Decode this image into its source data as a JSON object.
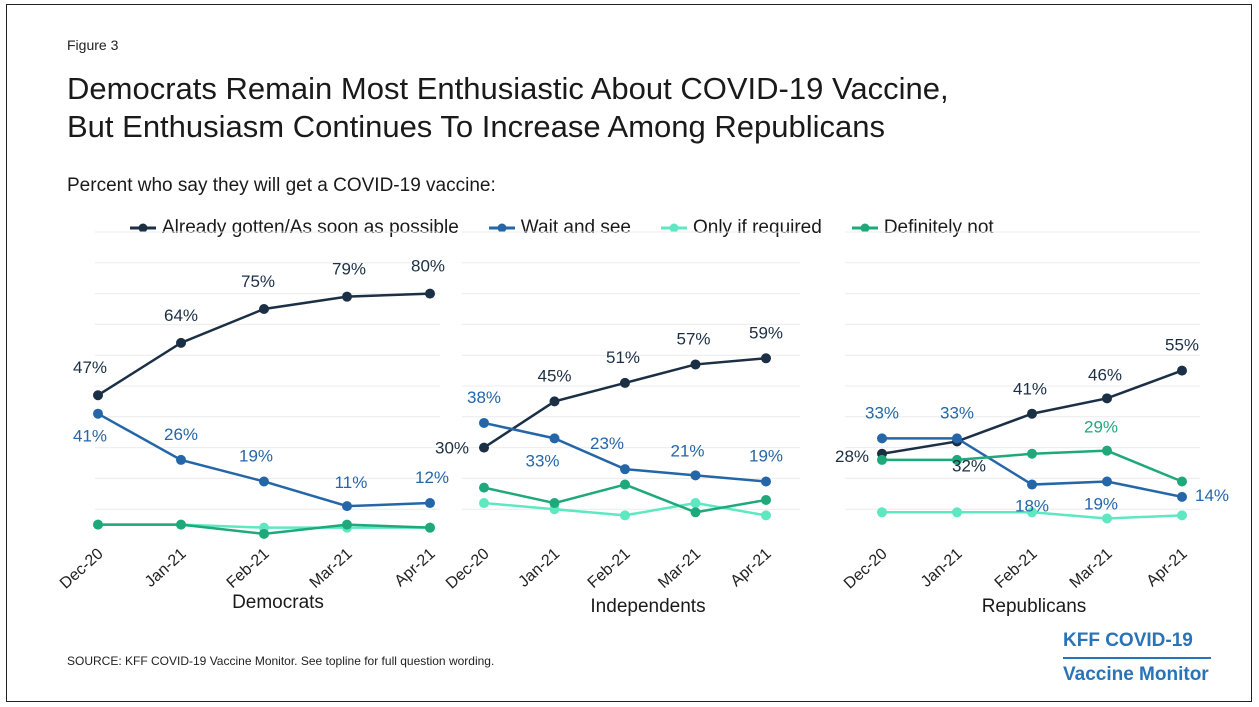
{
  "figure_label": "Figure 3",
  "title_line1": "Democrats Remain Most Enthusiastic About COVID-19 Vaccine,",
  "title_line2": "But Enthusiasm Continues To Increase Among Republicans",
  "subtitle": "Percent who say they will get a COVID-19 vaccine:",
  "source": "SOURCE: KFF COVID-19 Vaccine Monitor. See topline for full question wording.",
  "brand_line1": "KFF COVID-19",
  "brand_line2": "Vaccine Monitor",
  "colors": {
    "already": "#1b2f45",
    "wait": "#2566a8",
    "required": "#5ee8c2",
    "definitely_not": "#1fa97a"
  },
  "legend": [
    {
      "label": "Already gotten/As soon as possible",
      "color": "#1b2f45"
    },
    {
      "label": "Wait and see",
      "color": "#2566a8"
    },
    {
      "label": "Only if required",
      "color": "#5ee8c2"
    },
    {
      "label": "Definitely not",
      "color": "#1fa97a"
    }
  ],
  "chart_data": [
    {
      "type": "line",
      "title": "Democrats",
      "categories": [
        "Dec-20",
        "Jan-21",
        "Feb-21",
        "Mar-21",
        "Apr-21"
      ],
      "series": [
        {
          "name": "Already gotten/As soon as possible",
          "values": [
            47,
            64,
            75,
            79,
            80
          ],
          "labels": [
            "47%",
            "64%",
            "75%",
            "79%",
            "80%"
          ]
        },
        {
          "name": "Wait and see",
          "values": [
            41,
            26,
            19,
            11,
            12
          ],
          "labels": [
            "41%",
            "26%",
            "19%",
            "11%",
            "12%"
          ]
        },
        {
          "name": "Only if required",
          "values": [
            5,
            5,
            4,
            4,
            4
          ],
          "labels": []
        },
        {
          "name": "Definitely not",
          "values": [
            5,
            5,
            2,
            5,
            4
          ],
          "labels": []
        }
      ],
      "ylim": [
        0,
        100
      ]
    },
    {
      "type": "line",
      "title": "Independents",
      "categories": [
        "Dec-20",
        "Jan-21",
        "Feb-21",
        "Mar-21",
        "Apr-21"
      ],
      "series": [
        {
          "name": "Already gotten/As soon as possible",
          "values": [
            30,
            45,
            51,
            57,
            59
          ],
          "labels": [
            "30%",
            "45%",
            "51%",
            "57%",
            "59%"
          ]
        },
        {
          "name": "Wait and see",
          "values": [
            38,
            33,
            23,
            21,
            19
          ],
          "labels": [
            "38%",
            "33%",
            "23%",
            "21%",
            "19%"
          ]
        },
        {
          "name": "Only if required",
          "values": [
            12,
            10,
            8,
            12,
            8
          ],
          "labels": []
        },
        {
          "name": "Definitely not",
          "values": [
            17,
            12,
            18,
            9,
            13
          ],
          "labels": []
        }
      ],
      "ylim": [
        0,
        100
      ]
    },
    {
      "type": "line",
      "title": "Republicans",
      "categories": [
        "Dec-20",
        "Jan-21",
        "Feb-21",
        "Mar-21",
        "Apr-21"
      ],
      "series": [
        {
          "name": "Already gotten/As soon as possible",
          "values": [
            28,
            32,
            41,
            46,
            55
          ],
          "labels": [
            "28%",
            "32%",
            "41%",
            "46%",
            "55%"
          ]
        },
        {
          "name": "Wait and see",
          "values": [
            33,
            33,
            18,
            19,
            14
          ],
          "labels": [
            "33%",
            "33%",
            "18%",
            "19%",
            "14%"
          ]
        },
        {
          "name": "Only if required",
          "values": [
            9,
            9,
            9,
            7,
            8
          ],
          "labels": []
        },
        {
          "name": "Definitely not",
          "values": [
            26,
            26,
            28,
            29,
            19
          ],
          "labels": [
            "",
            "",
            "",
            "29%",
            ""
          ]
        }
      ],
      "ylim": [
        0,
        100
      ]
    }
  ]
}
